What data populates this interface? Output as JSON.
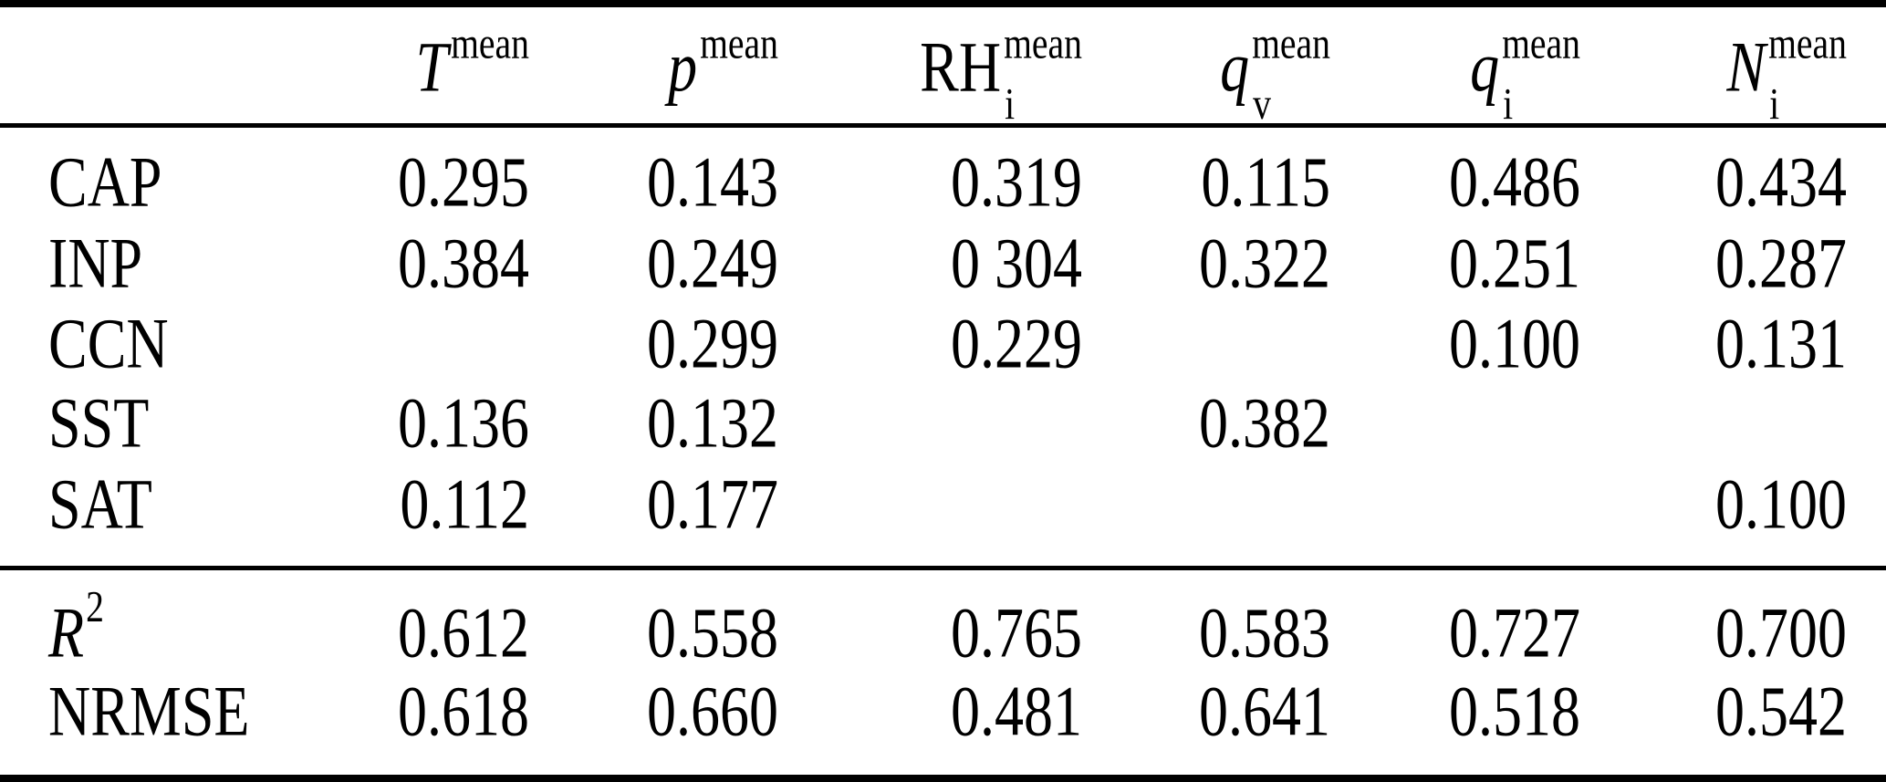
{
  "page": {
    "background": "#ffffff",
    "text_color": "#000000",
    "rule_color": "#000000"
  },
  "table": {
    "columns": [
      {
        "base": "T",
        "sub": "",
        "sup": "mean"
      },
      {
        "base": "p",
        "sub": "",
        "sup": "mean"
      },
      {
        "base": "RH",
        "sub": "i",
        "sup": "mean"
      },
      {
        "base": "q",
        "sub": "v",
        "sup": "mean"
      },
      {
        "base": "q",
        "sub": "i",
        "sup": "mean"
      },
      {
        "base": "N",
        "sub": "i",
        "sup": "mean"
      }
    ],
    "rows": [
      {
        "label": "CAP",
        "values": [
          "0.295",
          "0.143",
          "0.319",
          "0.115",
          "0.486",
          "0.434"
        ]
      },
      {
        "label": "INP",
        "values": [
          "0.384",
          "0.249",
          "0 304",
          "0.322",
          "0.251",
          "0.287"
        ]
      },
      {
        "label": "CCN",
        "values": [
          "",
          "0.299",
          "0.229",
          "",
          "0.100",
          "0.131"
        ]
      },
      {
        "label": "SST",
        "values": [
          "0.136",
          "0.132",
          "",
          "0.382",
          "",
          ""
        ]
      },
      {
        "label": "SAT",
        "values": [
          "0.112",
          "0.177",
          "",
          "",
          "",
          "0.100"
        ]
      }
    ],
    "summary_rows": [
      {
        "base": "R",
        "sup": "2",
        "values": [
          "0.612",
          "0.558",
          "0.765",
          "0.583",
          "0.727",
          "0.700"
        ]
      },
      {
        "base": "NRMSE",
        "sup": "",
        "values": [
          "0.618",
          "0.660",
          "0.481",
          "0.641",
          "0.518",
          "0.542"
        ]
      }
    ]
  }
}
